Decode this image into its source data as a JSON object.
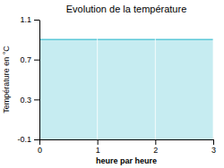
{
  "chart_data": {
    "type": "area",
    "title": "Evolution de la température",
    "x_label": "heure par heure",
    "y_label": "Température en °C",
    "x": [
      0,
      3
    ],
    "values": [
      0.9,
      0.9
    ],
    "color": "#5bc8d8",
    "xlim": [
      0,
      3
    ],
    "ylim": [
      -0.1,
      1.1
    ],
    "xticks": [
      0,
      1,
      2,
      3
    ],
    "yticks": [
      -0.1,
      0.3,
      0.7,
      1.1
    ],
    "grid": true
  }
}
